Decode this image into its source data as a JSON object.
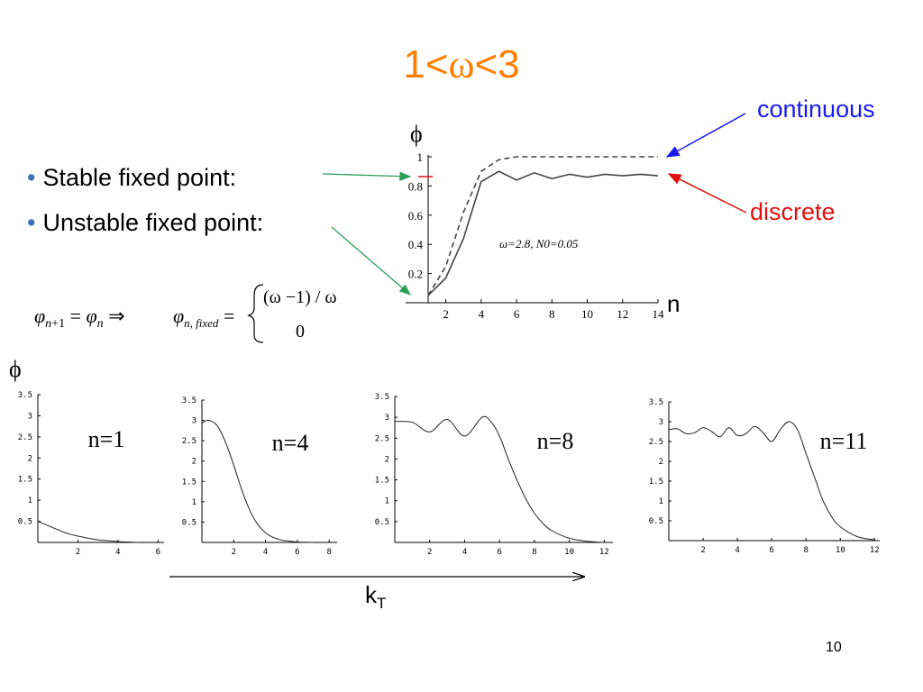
{
  "slide": {
    "title_prefix": "1<",
    "title_symbol": "ω",
    "title_suffix": "<3",
    "bullets": [
      "Stable fixed point:",
      "Unstable fixed point:"
    ],
    "page_number": "10",
    "colors": {
      "title": "#ff8000",
      "continuous": "#1a1aee",
      "discrete": "#e01010",
      "pointer": "#2e9e5a"
    }
  },
  "equation": {
    "lhs": "φn+1 = φn ⇒",
    "fixed_label": "φn, fixed =",
    "case1": "(ω −1) / ω",
    "case2": "0"
  },
  "main_plot": {
    "y_label": "ϕ",
    "x_label": "n",
    "continuous_label": "continuous",
    "discrete_label": "discrete",
    "annotation": "ω=2.8, N0=0.05"
  },
  "bottom": {
    "y_label": "ϕ",
    "x_label": "k",
    "x_label_sub": "T"
  },
  "chart_data": [
    {
      "type": "line",
      "xlabel": "n",
      "ylabel": "ϕ",
      "xlim": [
        1,
        14
      ],
      "ylim": [
        0,
        1
      ],
      "x_ticks": [
        2,
        4,
        6,
        8,
        10,
        12,
        14
      ],
      "y_ticks": [
        0.2,
        0.4,
        0.6,
        0.8,
        1
      ],
      "annotation": "ω=2.8, N0=0.05",
      "series": [
        {
          "name": "continuous",
          "style": "dashed",
          "x": [
            1,
            2,
            3,
            4,
            5,
            6,
            7,
            8,
            9,
            10,
            11,
            12,
            13,
            14
          ],
          "y": [
            0.05,
            0.25,
            0.62,
            0.9,
            0.98,
            1,
            1,
            1,
            1,
            1,
            1,
            1,
            1,
            1
          ]
        },
        {
          "name": "discrete",
          "style": "solid",
          "x": [
            1,
            2,
            3,
            4,
            5,
            6,
            7,
            8,
            9,
            10,
            11,
            12,
            13,
            14
          ],
          "y": [
            0.05,
            0.17,
            0.44,
            0.83,
            0.9,
            0.84,
            0.89,
            0.85,
            0.88,
            0.86,
            0.88,
            0.87,
            0.88,
            0.87
          ]
        }
      ]
    },
    {
      "type": "line",
      "label": "n=1",
      "xlim": [
        0,
        6.3
      ],
      "ylim": [
        0,
        3.5
      ],
      "x_ticks": [
        2,
        4,
        6
      ],
      "y_ticks": [
        0.5,
        1,
        1.5,
        2,
        2.5,
        3,
        3.5
      ],
      "x": [
        0,
        0.5,
        1,
        1.5,
        2,
        2.5,
        3,
        3.5,
        4,
        4.5,
        5
      ],
      "y": [
        0.5,
        0.4,
        0.3,
        0.21,
        0.15,
        0.1,
        0.06,
        0.04,
        0.02,
        0.01,
        0
      ]
    },
    {
      "type": "line",
      "label": "n=4",
      "xlim": [
        0,
        8.5
      ],
      "ylim": [
        0,
        3.5
      ],
      "x_ticks": [
        2,
        4,
        6,
        8
      ],
      "y_ticks": [
        0.5,
        1,
        1.5,
        2,
        2.5,
        3,
        3.5
      ],
      "x": [
        0,
        0.3,
        0.6,
        1,
        1.5,
        2,
        2.5,
        3,
        3.5,
        4,
        4.5,
        5,
        5.5,
        6,
        7
      ],
      "y": [
        2.93,
        3.0,
        2.98,
        2.85,
        2.45,
        1.9,
        1.3,
        0.8,
        0.45,
        0.24,
        0.12,
        0.06,
        0.03,
        0.01,
        0
      ]
    },
    {
      "type": "line",
      "label": "n=8",
      "xlim": [
        0,
        12.5
      ],
      "ylim": [
        0,
        3.5
      ],
      "x_ticks": [
        2,
        4,
        6,
        8,
        10,
        12
      ],
      "y_ticks": [
        0.5,
        1,
        1.5,
        2,
        2.5,
        3,
        3.5
      ],
      "x": [
        0,
        1,
        2,
        3,
        4,
        5,
        5.5,
        6,
        6.5,
        7,
        7.5,
        8,
        8.5,
        9,
        10,
        11,
        12
      ],
      "y": [
        2.9,
        2.88,
        2.65,
        2.95,
        2.55,
        3.0,
        2.9,
        2.55,
        2.0,
        1.5,
        1.05,
        0.7,
        0.45,
        0.28,
        0.1,
        0.03,
        0
      ]
    },
    {
      "type": "line",
      "label": "n=11",
      "xlim": [
        0,
        12.3
      ],
      "ylim": [
        0,
        3.5
      ],
      "x_ticks": [
        2,
        4,
        6,
        8,
        10,
        12
      ],
      "y_ticks": [
        0.5,
        1,
        1.5,
        2,
        2.5,
        3,
        3.5
      ],
      "x": [
        0,
        0.5,
        1,
        1.5,
        2,
        2.5,
        3,
        3.5,
        4,
        4.5,
        5,
        5.5,
        6,
        6.5,
        7,
        7.5,
        8,
        8.5,
        9,
        9.5,
        10,
        11,
        12
      ],
      "y": [
        2.8,
        2.82,
        2.7,
        2.72,
        2.85,
        2.75,
        2.62,
        2.85,
        2.65,
        2.7,
        2.88,
        2.72,
        2.5,
        2.8,
        3.0,
        2.8,
        2.2,
        1.6,
        1.0,
        0.6,
        0.35,
        0.1,
        0.02
      ]
    }
  ]
}
